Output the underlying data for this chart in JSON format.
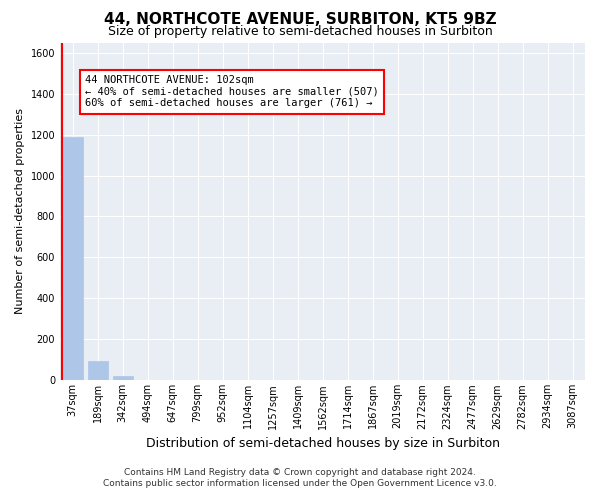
{
  "title": "44, NORTHCOTE AVENUE, SURBITON, KT5 9BZ",
  "subtitle": "Size of property relative to semi-detached houses in Surbiton",
  "xlabel": "Distribution of semi-detached houses by size in Surbiton",
  "ylabel": "Number of semi-detached properties",
  "categories": [
    "37sqm",
    "189sqm",
    "342sqm",
    "494sqm",
    "647sqm",
    "799sqm",
    "952sqm",
    "1104sqm",
    "1257sqm",
    "1409sqm",
    "1562sqm",
    "1714sqm",
    "1867sqm",
    "2019sqm",
    "2172sqm",
    "2324sqm",
    "2477sqm",
    "2629sqm",
    "2782sqm",
    "2934sqm",
    "3087sqm"
  ],
  "bar_heights": [
    1190,
    95,
    20,
    0,
    0,
    0,
    0,
    0,
    0,
    0,
    0,
    0,
    0,
    0,
    0,
    0,
    0,
    0,
    0,
    0,
    0
  ],
  "bar_color": "#aec6e8",
  "vline_color": "red",
  "vline_x": -0.42,
  "annotation_text": "44 NORTHCOTE AVENUE: 102sqm\n← 40% of semi-detached houses are smaller (507)\n60% of semi-detached houses are larger (761) →",
  "annotation_box_facecolor": "white",
  "annotation_box_edgecolor": "red",
  "ylim": [
    0,
    1650
  ],
  "yticks": [
    0,
    200,
    400,
    600,
    800,
    1000,
    1200,
    1400,
    1600
  ],
  "figure_facecolor": "#ffffff",
  "axes_facecolor": "#e8eef4",
  "grid_color": "#ffffff",
  "footnote1": "Contains HM Land Registry data © Crown copyright and database right 2024.",
  "footnote2": "Contains public sector information licensed under the Open Government Licence v3.0.",
  "title_fontsize": 11,
  "subtitle_fontsize": 9,
  "xlabel_fontsize": 9,
  "ylabel_fontsize": 8,
  "tick_fontsize": 7,
  "annot_fontsize": 7.5
}
